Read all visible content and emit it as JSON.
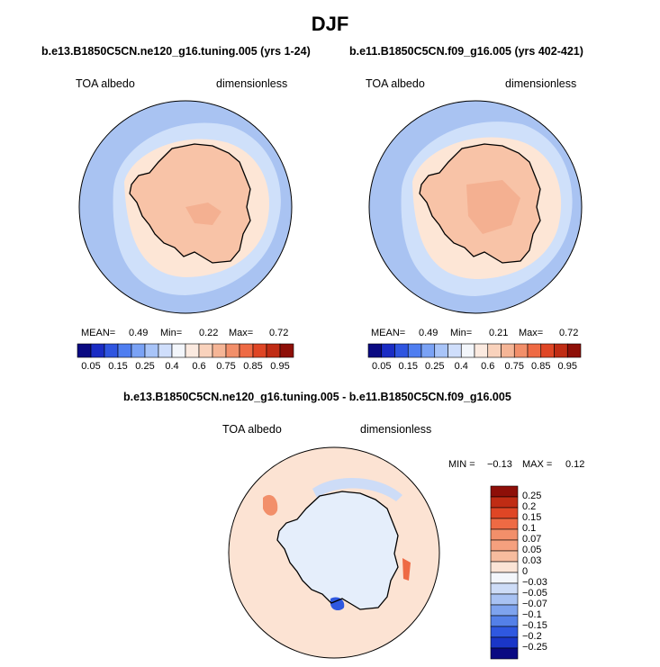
{
  "title": "DJF",
  "panels": [
    {
      "id": "left",
      "title": "b.e13.B1850C5CN.ne120_g16.tuning.005 (yrs 1-24)",
      "var_label": "TOA albedo",
      "units_label": "dimensionless",
      "stats": {
        "mean_label": "MEAN=",
        "mean": "0.49",
        "min_label": "Min=",
        "min": "0.22",
        "max_label": "Max=",
        "max": "0.72"
      }
    },
    {
      "id": "right",
      "title": "b.e11.B1850C5CN.f09_g16.005 (yrs 402-421)",
      "var_label": "TOA albedo",
      "units_label": "dimensionless",
      "stats": {
        "mean_label": "MEAN=",
        "mean": "0.49",
        "min_label": "Min=",
        "min": "0.21",
        "max_label": "Max=",
        "max": "0.72"
      }
    }
  ],
  "abs_colorbar": {
    "ticks": [
      "0.05",
      "0.15",
      "0.25",
      "0.4",
      "0.6",
      "0.75",
      "0.85",
      "0.95"
    ],
    "colors": [
      "#0a0a82",
      "#1a2cc4",
      "#2f55e0",
      "#4f7ef0",
      "#7aa2f5",
      "#a8c4f8",
      "#cfdefb",
      "#f3f6fb",
      "#fbeae0",
      "#f9d2bc",
      "#f5b596",
      "#f28f6a",
      "#ee6a44",
      "#df4625",
      "#c02c14",
      "#8e0f08"
    ]
  },
  "diff_panel": {
    "title": "b.e13.B1850C5CN.ne120_g16.tuning.005 - b.e11.B1850C5CN.f09_g16.005",
    "var_label": "TOA albedo",
    "units_label": "dimensionless",
    "stats": {
      "min_label": "MIN =",
      "min": "−0.13",
      "max_label": "MAX =",
      "max": "0.12"
    }
  },
  "diff_colorbar": {
    "labels": [
      "0.25",
      "0.2",
      "0.15",
      "0.1",
      "0.07",
      "0.05",
      "0.03",
      "0",
      "−0.03",
      "−0.05",
      "−0.07",
      "−0.1",
      "−0.15",
      "−0.2",
      "−0.25"
    ],
    "colors": [
      "#8e0f08",
      "#c02c14",
      "#df4625",
      "#ee6a44",
      "#f28f6a",
      "#f5a07e",
      "#f7bc9e",
      "#fbe4d6",
      "#f3f6fb",
      "#cddcf7",
      "#a8c2f3",
      "#7ea3ee",
      "#5480e8",
      "#2f58e0",
      "#1a36c8",
      "#0a0a82"
    ]
  },
  "map_colors": {
    "ocean_outer": "#a9c3f2",
    "ocean_inner": "#cfe0fa",
    "ice": "#fde6d6",
    "land": "#f8c3a7",
    "land_dark": "#f4b091",
    "diff_bg": "#fce3d3",
    "diff_land": "#e5eefb",
    "coast": "#000000"
  }
}
